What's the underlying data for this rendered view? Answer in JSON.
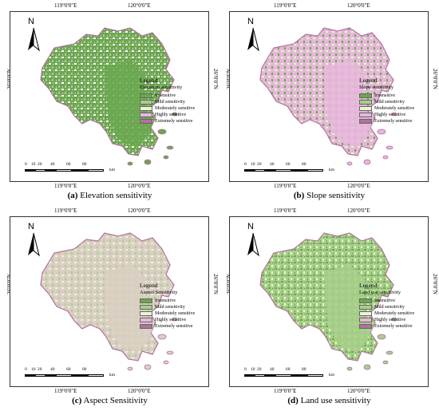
{
  "coordinates": {
    "lon_left": "119°0'0\"E",
    "lon_right": "120°0'0\"E",
    "lat_label": "26°0'0\"N"
  },
  "north_label": "N",
  "legend": {
    "title": "Legend",
    "classes": [
      "Insensitive",
      "Mild sensitivity",
      "Moderately sensitive",
      "Highly sensitive",
      "Extremely sensitive"
    ],
    "class_colors": [
      "#6aa84f",
      "#a8cf8a",
      "#eef1da",
      "#e8b7dc",
      "#b4709e"
    ]
  },
  "scalebar": {
    "ticks": [
      "0",
      "10",
      "20",
      "40",
      "60",
      "80"
    ],
    "unit": "km"
  },
  "panels": [
    {
      "letter": "(a)",
      "caption": "Elevation sensitivity",
      "legend_subtitle": "Elevation sensitivity",
      "fill_color": "#6aa84f",
      "texture_colors": [
        "#ffffff",
        "#a8cf8a",
        "#e8b7dc"
      ],
      "outline_color": "#b4709e"
    },
    {
      "letter": "(b)",
      "caption": "Slope sensitivity",
      "legend_subtitle": "Slope sensitivity",
      "fill_color": "#e8b7dc",
      "texture_colors": [
        "#eef1da",
        "#6aa84f",
        "#a8cf8a"
      ],
      "outline_color": "#b4709e"
    },
    {
      "letter": "(c)",
      "caption": "Aspect Sensitivity",
      "legend_subtitle": "Aspect Sensitivity",
      "fill_color": "#d9d0c2",
      "texture_colors": [
        "#eef1da",
        "#a8cf8a",
        "#e8b7dc"
      ],
      "outline_color": "#b4709e"
    },
    {
      "letter": "(d)",
      "caption": "Land use sensitivity",
      "legend_subtitle": "Land use sensitivity",
      "fill_color": "#a8cf8a",
      "texture_colors": [
        "#6aa84f",
        "#eef1da",
        "#6aa84f"
      ],
      "outline_color": "#b4709e"
    }
  ]
}
